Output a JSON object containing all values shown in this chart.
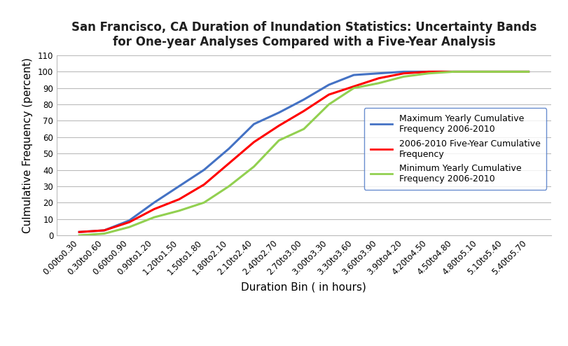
{
  "title": "San Francisco, CA Duration of Inundation Statistics: Uncertainty Bands\nfor One-year Analyses Compared with a Five-Year Analysis",
  "xlabel": "Duration Bin ( in hours)",
  "ylabel": "Culmulative Frequency (percent)",
  "categories": [
    "0.00to0.30",
    "0.30to0.60",
    "0.60to0.90",
    "0.90to1.20",
    "1.20to1.50",
    "1.50to1.80",
    "1.80to2.10",
    "2.10to2.40",
    "2.40to2.70",
    "2.70to3.00",
    "3.00to3.30",
    "3.30to3.60",
    "3.60to3.90",
    "3.90to4.20",
    "4.20to4.50",
    "4.50to4.80",
    "4.80to5.10",
    "5.10to5.40",
    "5.40to5.70"
  ],
  "max_yearly": [
    2,
    3,
    9,
    20,
    30,
    40,
    53,
    68,
    75,
    83,
    92,
    98,
    99,
    100,
    100,
    100,
    100,
    100,
    100
  ],
  "five_year": [
    2,
    3,
    8,
    16,
    22,
    31,
    44,
    57,
    67,
    76,
    86,
    91,
    96,
    99,
    100,
    100,
    100,
    100,
    100
  ],
  "min_yearly": [
    0,
    1,
    5,
    11,
    15,
    20,
    30,
    42,
    58,
    65,
    80,
    90,
    93,
    97,
    99,
    100,
    100,
    100,
    100
  ],
  "max_color": "#4472C4",
  "five_color": "#FF0000",
  "min_color": "#92D050",
  "ylim": [
    0,
    110
  ],
  "yticks": [
    0,
    10,
    20,
    30,
    40,
    50,
    60,
    70,
    80,
    90,
    100,
    110
  ],
  "legend_labels": [
    "Maximum Yearly Cumulative\nFrequency 2006-2010",
    "2006-2010 Five-Year Cumulative\nFrequency",
    "Minimum Yearly Cumulative\nFrequency 2006-2010"
  ],
  "title_fontsize": 12,
  "label_fontsize": 11,
  "tick_fontsize": 8.5,
  "legend_fontsize": 9,
  "line_width": 2.2,
  "background_color": "#FFFFFF",
  "grid_color": "#BBBBBB",
  "title_color": "#1F1F1F"
}
